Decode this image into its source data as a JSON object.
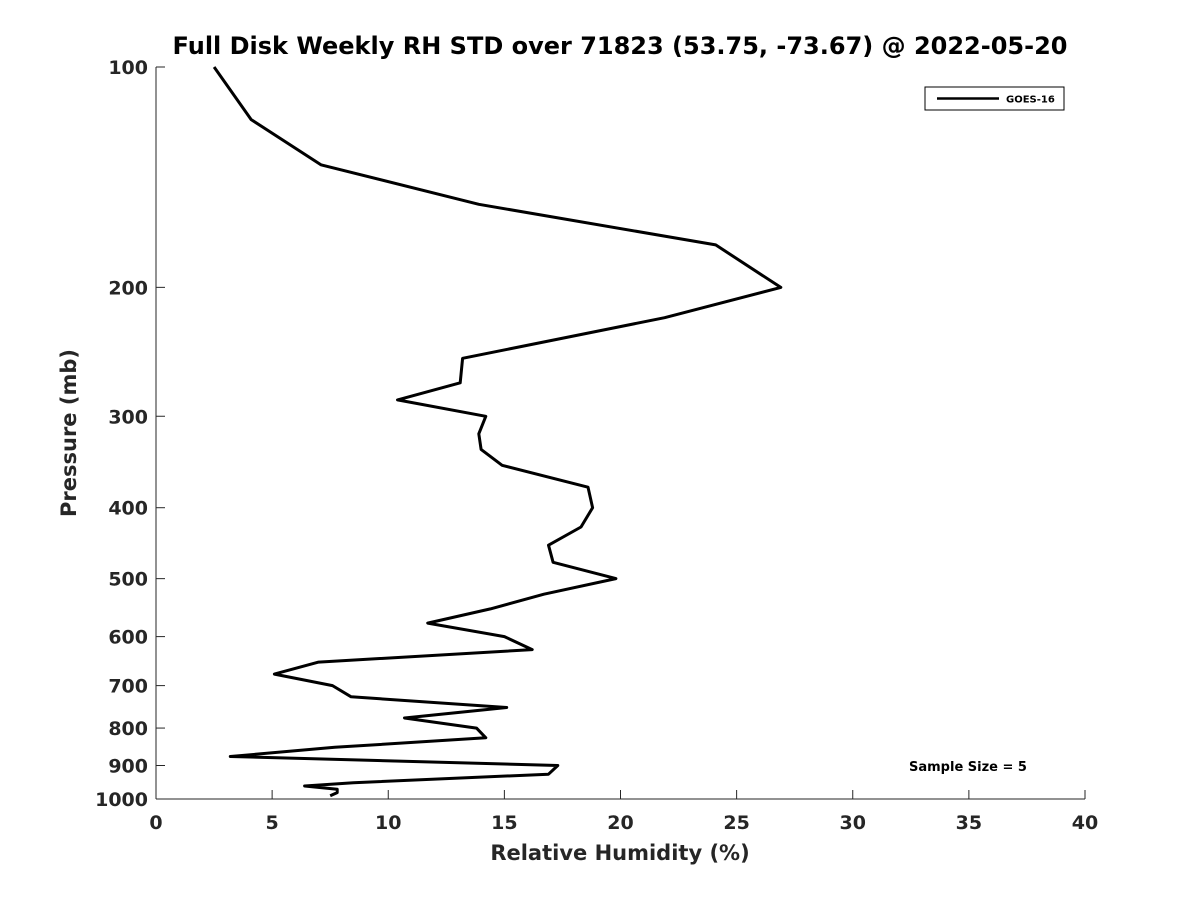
{
  "chart_data": {
    "type": "line",
    "title": "Full Disk Weekly RH STD over 71823 (53.75, -73.67) @ 2022-05-20",
    "xlabel": "Relative Humidity (%)",
    "ylabel": "Pressure (mb)",
    "xlim": [
      0,
      40
    ],
    "ylim": [
      1000,
      100
    ],
    "y_scale": "log",
    "grid": false,
    "x_ticks": [
      "0",
      "5",
      "10",
      "15",
      "20",
      "25",
      "30",
      "35",
      "40"
    ],
    "y_ticks": [
      "100",
      "200",
      "300",
      "400",
      "500",
      "600",
      "700",
      "800",
      "900",
      "1000"
    ],
    "legend": {
      "position": "top-right",
      "entries": [
        "GOES-16"
      ]
    },
    "annotation": "Sample Size = 5",
    "series": [
      {
        "name": "GOES-16",
        "color": "#000000",
        "points": [
          [
            2.5,
            100
          ],
          [
            4.1,
            118
          ],
          [
            7.1,
            136
          ],
          [
            13.9,
            154
          ],
          [
            24.1,
            175
          ],
          [
            26.9,
            200
          ],
          [
            21.9,
            220
          ],
          [
            13.2,
            250
          ],
          [
            13.1,
            270
          ],
          [
            10.4,
            285
          ],
          [
            14.2,
            300
          ],
          [
            13.9,
            317
          ],
          [
            14.0,
            333
          ],
          [
            14.9,
            350
          ],
          [
            18.6,
            375
          ],
          [
            18.8,
            400
          ],
          [
            18.3,
            425
          ],
          [
            16.9,
            450
          ],
          [
            17.1,
            475
          ],
          [
            19.8,
            500
          ],
          [
            16.7,
            525
          ],
          [
            14.4,
            550
          ],
          [
            11.7,
            575
          ],
          [
            15.0,
            600
          ],
          [
            16.2,
            625
          ],
          [
            7.0,
            650
          ],
          [
            5.1,
            675
          ],
          [
            7.6,
            700
          ],
          [
            8.4,
            725
          ],
          [
            15.1,
            750
          ],
          [
            10.7,
            775
          ],
          [
            13.8,
            800
          ],
          [
            14.2,
            825
          ],
          [
            7.7,
            850
          ],
          [
            3.2,
            875
          ],
          [
            17.3,
            900
          ],
          [
            16.9,
            925
          ],
          [
            8.5,
            950
          ],
          [
            6.4,
            960
          ],
          [
            7.8,
            970
          ],
          [
            7.8,
            980
          ],
          [
            7.5,
            990
          ]
        ]
      }
    ]
  }
}
